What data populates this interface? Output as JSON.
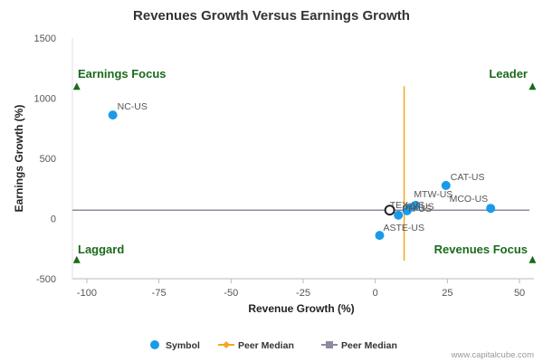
{
  "chart_data": {
    "type": "scatter",
    "title": "Revenues Growth Versus Earnings Growth",
    "xlabel": "Revenue Growth (%)",
    "ylabel": "Earnings Growth (%)",
    "xlim": [
      -105,
      55
    ],
    "ylim": [
      -500,
      1500
    ],
    "x_ticks": [
      -100,
      -75,
      -50,
      -25,
      0,
      25,
      50
    ],
    "y_ticks": [
      -500,
      0,
      500,
      1000,
      1500
    ],
    "grid": false,
    "points": [
      {
        "label": "NC-US",
        "x": -91,
        "y": 860
      },
      {
        "label": "CAT-US",
        "x": 24.5,
        "y": 275
      },
      {
        "label": "MCO-US",
        "x": 40,
        "y": 85
      },
      {
        "label": "MTW-US",
        "x": 14,
        "y": 110
      },
      {
        "label": "TEX-US",
        "x": 11,
        "y": 65
      },
      {
        "label": "HY-US",
        "x": 12,
        "y": 90
      },
      {
        "label": "PH-US",
        "x": 8,
        "y": 28
      },
      {
        "label": "ASTE-US",
        "x": 1.5,
        "y": -140
      }
    ],
    "highlight_point": {
      "x": 5,
      "y": 70
    },
    "peer_median": {
      "x": 10,
      "y": 70
    },
    "quadrants": {
      "top_left": "Earnings Focus",
      "top_right": "Leader",
      "bottom_left": "Laggard",
      "bottom_right": "Revenues Focus"
    },
    "legend": {
      "placement": "bottom",
      "items": [
        "Symbol",
        "Peer Median",
        "Peer Median"
      ]
    },
    "colors": {
      "point": "#1a9be8",
      "highlight_stroke": "#222222",
      "vertical_median": "#f5a623",
      "horizontal_median": "#8c8ca0",
      "quadrant": "#1a6b1a",
      "axis": "#bbbbbb"
    }
  },
  "watermark": "www.capitalcube.com"
}
